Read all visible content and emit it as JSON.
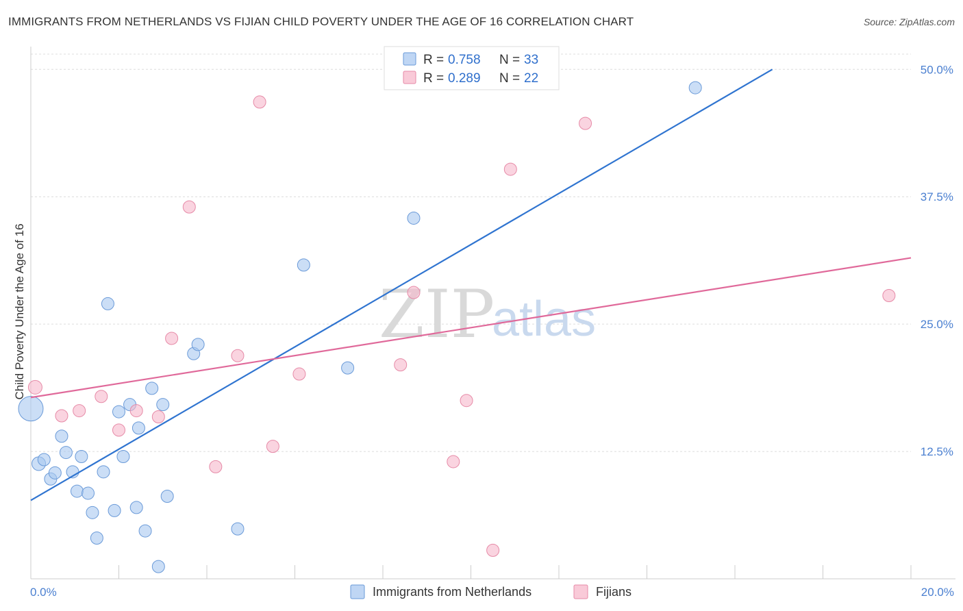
{
  "header": {
    "title": "IMMIGRANTS FROM NETHERLANDS VS FIJIAN CHILD POVERTY UNDER THE AGE OF 16 CORRELATION CHART",
    "source": "Source: ZipAtlas.com"
  },
  "watermark": {
    "part1": "ZIP",
    "part2": "atlas"
  },
  "legend": {
    "rows": [
      {
        "r_label": "R =",
        "r_value": "0.758",
        "n_label": "N =",
        "n_value": "33",
        "color": "#a9c8f0"
      },
      {
        "r_label": "R =",
        "r_value": "0.289",
        "n_label": "N =",
        "n_value": "22",
        "color": "#f7b8cb"
      }
    ]
  },
  "bottom_legend": {
    "items": [
      {
        "label": "Immigrants from Netherlands",
        "color": "#a9c8f0"
      },
      {
        "label": "Fijians",
        "color": "#f7b8cb"
      }
    ]
  },
  "chart_data": {
    "type": "scatter",
    "title": "IMMIGRANTS FROM NETHERLANDS VS FIJIAN CHILD POVERTY UNDER THE AGE OF 16 CORRELATION CHART",
    "xlabel": "",
    "ylabel": "Child Poverty Under the Age of 16",
    "xlim": [
      0,
      20
    ],
    "ylim": [
      0,
      50
    ],
    "x_tick_labels": [
      "0.0%",
      "20.0%"
    ],
    "y_ticks": [
      12.5,
      25.0,
      37.5,
      50.0
    ],
    "y_tick_labels": [
      "12.5%",
      "25.0%",
      "37.5%",
      "50.0%"
    ],
    "grid": "horizontal dashed",
    "legend_position": "top-center",
    "series": [
      {
        "name": "Immigrants from Netherlands",
        "color": "#a9c8f0",
        "stroke": "#6a9ad8",
        "trend_color": "#2f74d0",
        "trend": {
          "x0": 0,
          "y0": 7.7,
          "x1": 16.85,
          "y1": 50.0
        },
        "points": [
          [
            0.0,
            16.7
          ],
          [
            0.18,
            11.3
          ],
          [
            0.3,
            11.7
          ],
          [
            0.45,
            9.8
          ],
          [
            0.55,
            10.4
          ],
          [
            0.7,
            14.0
          ],
          [
            0.8,
            12.4
          ],
          [
            0.95,
            10.5
          ],
          [
            1.05,
            8.6
          ],
          [
            1.15,
            12.0
          ],
          [
            1.3,
            8.4
          ],
          [
            1.4,
            6.5
          ],
          [
            1.5,
            4.0
          ],
          [
            1.65,
            10.5
          ],
          [
            1.75,
            27.0
          ],
          [
            1.9,
            6.7
          ],
          [
            2.0,
            16.4
          ],
          [
            2.1,
            12.0
          ],
          [
            2.25,
            17.1
          ],
          [
            2.4,
            7.0
          ],
          [
            2.45,
            14.8
          ],
          [
            2.6,
            4.7
          ],
          [
            2.75,
            18.7
          ],
          [
            2.9,
            1.2
          ],
          [
            3.0,
            17.1
          ],
          [
            3.1,
            8.1
          ],
          [
            3.7,
            22.1
          ],
          [
            3.8,
            23.0
          ],
          [
            4.7,
            4.9
          ],
          [
            6.2,
            30.8
          ],
          [
            7.2,
            20.7
          ],
          [
            8.7,
            35.4
          ],
          [
            15.1,
            48.2
          ]
        ],
        "sizes": [
          18,
          10,
          9,
          9,
          9,
          9,
          9,
          9,
          9,
          9,
          9,
          9,
          9,
          9,
          9,
          9,
          9,
          9,
          9,
          9,
          9,
          9,
          9,
          9,
          9,
          9,
          9,
          9,
          9,
          9,
          9,
          9,
          9
        ]
      },
      {
        "name": "Fijians",
        "color": "#f7b8cb",
        "stroke": "#e68aa7",
        "trend_color": "#e0699a",
        "trend": {
          "x0": 0,
          "y0": 17.8,
          "x1": 20.0,
          "y1": 31.5
        },
        "points": [
          [
            0.1,
            18.8
          ],
          [
            0.7,
            16.0
          ],
          [
            1.1,
            16.5
          ],
          [
            1.6,
            17.9
          ],
          [
            2.0,
            14.6
          ],
          [
            2.4,
            16.5
          ],
          [
            2.9,
            15.9
          ],
          [
            3.2,
            23.6
          ],
          [
            3.6,
            36.5
          ],
          [
            4.2,
            11.0
          ],
          [
            4.7,
            21.9
          ],
          [
            5.2,
            46.8
          ],
          [
            5.5,
            13.0
          ],
          [
            6.1,
            20.1
          ],
          [
            8.4,
            21.0
          ],
          [
            8.7,
            28.1
          ],
          [
            9.6,
            11.5
          ],
          [
            9.9,
            17.5
          ],
          [
            10.5,
            2.8
          ],
          [
            10.9,
            40.2
          ],
          [
            12.6,
            44.7
          ],
          [
            19.5,
            27.8
          ]
        ],
        "sizes": [
          10,
          9,
          9,
          9,
          9,
          9,
          9,
          9,
          9,
          9,
          9,
          9,
          9,
          9,
          9,
          9,
          9,
          9,
          9,
          9,
          9,
          9
        ]
      }
    ]
  }
}
